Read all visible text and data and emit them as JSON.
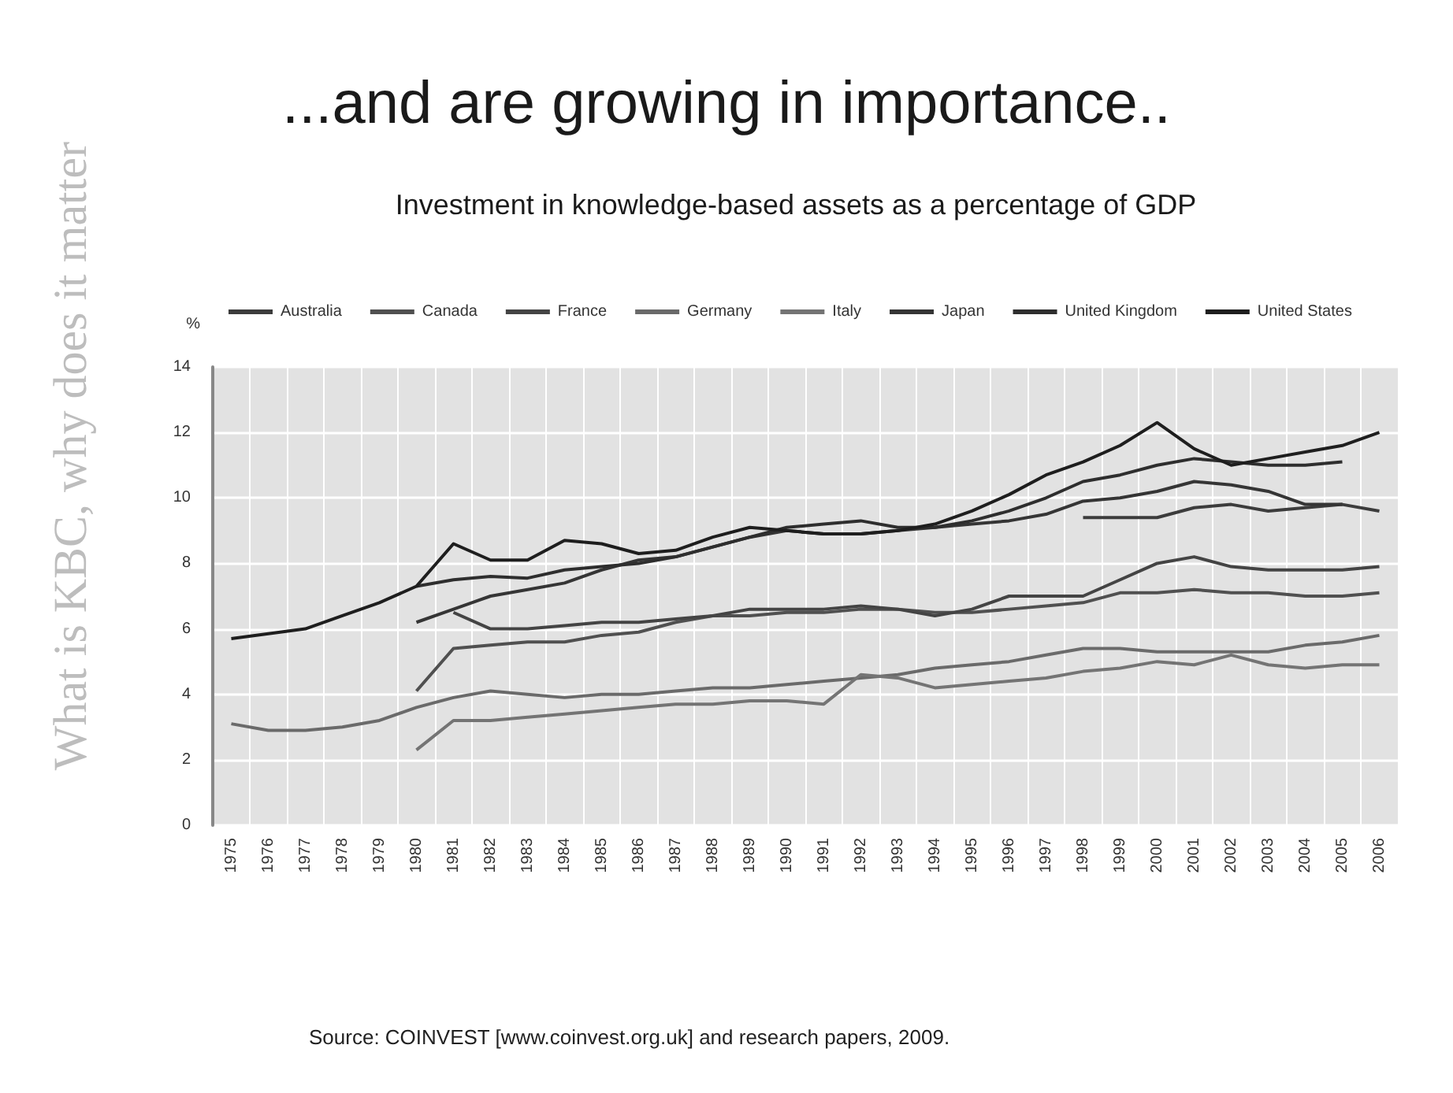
{
  "chart_data": {
    "type": "line",
    "title": "...and are growing in importance..",
    "subtitle": "Investment in knowledge-based assets as a percentage of GDP",
    "ylabel": "%",
    "annotations": [
      "What is KBC, why does it matter",
      "Source: COINVEST [www.coinvest.org.uk] and research papers, 2009."
    ],
    "categories": [
      "1975",
      "1976",
      "1977",
      "1978",
      "1979",
      "1980",
      "1981",
      "1982",
      "1983",
      "1984",
      "1985",
      "1986",
      "1987",
      "1988",
      "1989",
      "1990",
      "1991",
      "1992",
      "1993",
      "1994",
      "1995",
      "1996",
      "1997",
      "1998",
      "1999",
      "2000",
      "2001",
      "2002",
      "2003",
      "2004",
      "2005",
      "2006"
    ],
    "series": [
      {
        "name": "Australia",
        "color": "#3c3c3c",
        "values": [
          null,
          null,
          null,
          null,
          null,
          null,
          null,
          null,
          null,
          null,
          null,
          null,
          null,
          null,
          null,
          null,
          null,
          null,
          null,
          null,
          null,
          null,
          null,
          9.4,
          9.4,
          9.4,
          9.7,
          9.8,
          9.6,
          9.7,
          9.8,
          9.6
        ]
      },
      {
        "name": "Canada",
        "color": "#505050",
        "values": [
          null,
          null,
          null,
          null,
          null,
          4.1,
          5.4,
          5.5,
          5.6,
          5.6,
          5.8,
          5.9,
          6.2,
          6.4,
          6.4,
          6.5,
          6.5,
          6.6,
          6.6,
          6.5,
          6.5,
          6.6,
          6.7,
          6.8,
          7.1,
          7.1,
          7.2,
          7.1,
          7.1,
          7.0,
          7.0,
          7.1
        ]
      },
      {
        "name": "France",
        "color": "#444444",
        "values": [
          null,
          null,
          null,
          null,
          null,
          null,
          6.5,
          6.0,
          6.0,
          6.1,
          6.2,
          6.2,
          6.3,
          6.4,
          6.6,
          6.6,
          6.6,
          6.7,
          6.6,
          6.4,
          6.6,
          7.0,
          7.0,
          7.0,
          7.5,
          8.0,
          8.2,
          7.9,
          7.8,
          7.8,
          7.8,
          7.9
        ]
      },
      {
        "name": "Germany",
        "color": "#6a6a6a",
        "values": [
          3.1,
          2.9,
          2.9,
          3.0,
          3.2,
          3.6,
          3.9,
          4.1,
          4.0,
          3.9,
          4.0,
          4.0,
          4.1,
          4.2,
          4.2,
          4.3,
          4.4,
          4.5,
          4.6,
          4.8,
          4.9,
          5.0,
          5.2,
          5.4,
          5.4,
          5.3,
          5.3,
          5.3,
          5.3,
          5.5,
          5.6,
          5.8
        ]
      },
      {
        "name": "Italy",
        "color": "#747474",
        "values": [
          null,
          null,
          null,
          null,
          null,
          2.3,
          3.2,
          3.2,
          3.3,
          3.4,
          3.5,
          3.6,
          3.7,
          3.7,
          3.8,
          3.8,
          3.7,
          4.6,
          4.5,
          4.2,
          4.3,
          4.4,
          4.5,
          4.7,
          4.8,
          5.0,
          4.9,
          5.2,
          4.9,
          4.8,
          4.9,
          4.9
        ]
      },
      {
        "name": "Japan",
        "color": "#353535",
        "values": [
          null,
          null,
          null,
          null,
          null,
          6.2,
          6.6,
          7.0,
          7.2,
          7.4,
          7.8,
          8.1,
          8.2,
          8.5,
          8.8,
          9.0,
          8.9,
          8.9,
          9.0,
          9.1,
          9.2,
          9.3,
          9.5,
          9.9,
          10.0,
          10.2,
          10.5,
          10.4,
          10.2,
          9.8,
          9.8,
          null
        ]
      },
      {
        "name": "United Kingdom",
        "color": "#2e2e2e",
        "values": [
          null,
          null,
          null,
          null,
          null,
          7.3,
          7.5,
          7.6,
          7.55,
          7.8,
          7.9,
          8.0,
          8.2,
          8.5,
          8.8,
          9.1,
          9.2,
          9.3,
          9.1,
          9.1,
          9.3,
          9.6,
          10.0,
          10.5,
          10.7,
          11.0,
          11.2,
          11.1,
          11.0,
          11.0,
          11.1,
          null
        ]
      },
      {
        "name": "United States",
        "color": "#1e1e1e",
        "values": [
          5.7,
          5.85,
          6.0,
          6.4,
          6.8,
          7.3,
          8.6,
          8.1,
          8.1,
          8.7,
          8.6,
          8.3,
          8.4,
          8.8,
          9.1,
          9.0,
          8.9,
          8.9,
          9.0,
          9.2,
          9.6,
          10.1,
          10.7,
          11.1,
          11.6,
          12.3,
          11.5,
          11.0,
          11.2,
          11.4,
          11.6,
          12.0
        ]
      }
    ],
    "ylim": [
      0,
      14
    ],
    "yticks": [
      0,
      2,
      4,
      6,
      8,
      10,
      12,
      14
    ],
    "grid": true,
    "legend": "top",
    "marker": "none",
    "line_style": "solid"
  }
}
